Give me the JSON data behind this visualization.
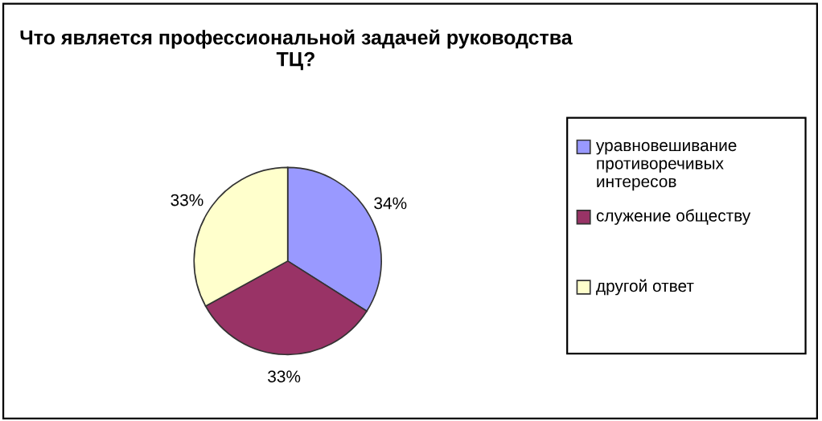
{
  "chart_data": {
    "type": "pie",
    "title": "Что является профессиональной задачей руководства ТЦ?",
    "categories": [
      "уравновешивание противоречивых интересов",
      "служение обществу",
      "другой ответ"
    ],
    "values": [
      34,
      33,
      33
    ],
    "colors": [
      "#9999ff",
      "#993366",
      "#ffffcc"
    ],
    "value_labels": [
      "34%",
      "33%",
      "33%"
    ],
    "legend": "right"
  }
}
